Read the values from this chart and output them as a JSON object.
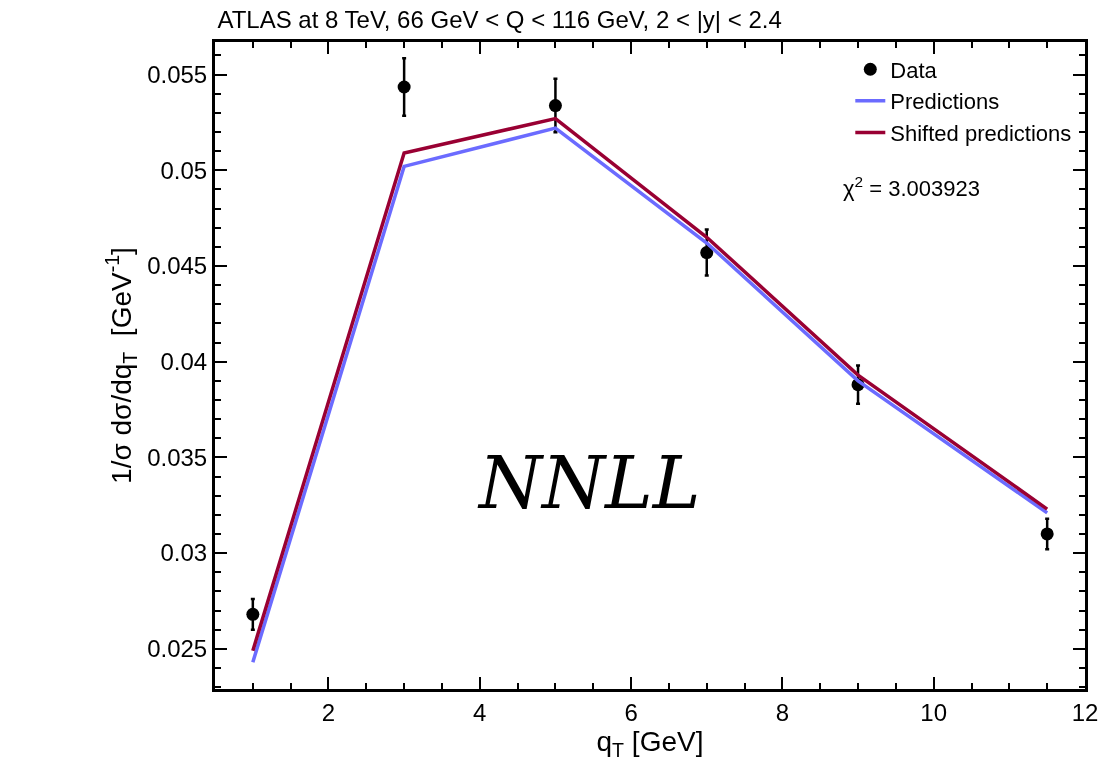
{
  "chart_data": {
    "type": "line",
    "title": "ATLAS at 8 TeV, 66 GeV < Q < 116 GeV, 2 < |y| < 2.4",
    "xlabel": "q$_{T}$ [GeV]",
    "ylabel": "1/σ dσ/dq$_{T}$  [GeV$^{-1}$]",
    "x": [
      1,
      3,
      5,
      7,
      9,
      11.5
    ],
    "series": [
      {
        "name": "Data",
        "type": "scatter",
        "color": "#000000",
        "marker": "circle",
        "values": [
          0.0268,
          0.05435,
          0.05338,
          0.0457,
          0.0388,
          0.031
        ],
        "errors": [
          0.0008,
          0.0015,
          0.0014,
          0.0012,
          0.001,
          0.0008
        ]
      },
      {
        "name": "Predictions",
        "color": "#6b6bff",
        "values": [
          0.0243,
          0.0502,
          0.0522,
          0.0462,
          0.039,
          0.0321
        ]
      },
      {
        "name": "Shifted predictions",
        "color": "#990033",
        "values": [
          0.0249,
          0.0509,
          0.0527,
          0.0465,
          0.0393,
          0.0323
        ]
      }
    ],
    "xlim": [
      0.5,
      12
    ],
    "xticks": [
      2,
      4,
      6,
      8,
      10,
      12
    ],
    "ylim": [
      0.0229,
      0.0567
    ],
    "yticks": [
      0.025,
      0.03,
      0.035,
      0.04,
      0.045,
      0.05,
      0.055
    ],
    "legend": "top right",
    "line_style": "solid",
    "annotations": [
      "χ$^{2}$ = 3.003923",
      "NNLL"
    ]
  }
}
